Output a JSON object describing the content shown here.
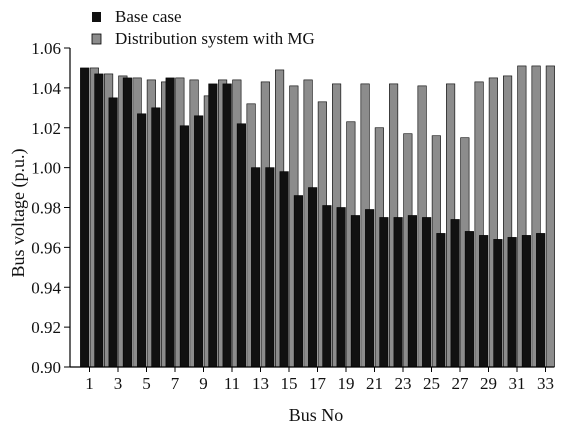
{
  "colors": {
    "base_case": "#111111",
    "mg": "#8c8c8c",
    "axis": "#000000",
    "background": "#ffffff"
  },
  "chart_data": {
    "type": "bar",
    "title": "",
    "xlabel": "Bus No",
    "ylabel": "Bus voltage (p.u.)",
    "ylim": [
      0.9,
      1.06
    ],
    "yticks": [
      "0.90",
      "0.92",
      "0.94",
      "0.96",
      "0.98",
      "1.00",
      "1.02",
      "1.04",
      "1.06"
    ],
    "grid": false,
    "legend_position": "top-left",
    "categories": [
      1,
      2,
      3,
      4,
      5,
      6,
      7,
      8,
      9,
      10,
      11,
      12,
      13,
      14,
      15,
      16,
      17,
      18,
      19,
      20,
      21,
      22,
      23,
      24,
      25,
      26,
      27,
      28,
      29,
      30,
      31,
      32,
      33
    ],
    "xtick_labels": [
      "1",
      "3",
      "5",
      "7",
      "9",
      "11",
      "13",
      "15",
      "17",
      "19",
      "21",
      "23",
      "25",
      "27",
      "29",
      "31",
      "33"
    ],
    "series": [
      {
        "name": "Base case",
        "values": [
          1.05,
          1.047,
          1.035,
          1.045,
          1.027,
          1.03,
          1.045,
          1.021,
          1.026,
          1.042,
          1.042,
          1.022,
          1.0,
          1.0,
          0.998,
          0.986,
          0.99,
          0.981,
          0.98,
          0.976,
          0.979,
          0.975,
          0.975,
          0.976,
          0.975,
          0.967,
          0.974,
          0.968,
          0.966,
          0.964,
          0.965,
          0.966,
          0.967
        ]
      },
      {
        "name": "Distribution system with MG",
        "values": [
          1.05,
          1.047,
          1.046,
          1.045,
          1.044,
          1.043,
          1.045,
          1.044,
          1.036,
          1.044,
          1.044,
          1.032,
          1.043,
          1.049,
          1.041,
          1.044,
          1.033,
          1.042,
          1.023,
          1.042,
          1.02,
          1.042,
          1.017,
          1.041,
          1.016,
          1.042,
          1.015,
          1.043,
          1.045,
          1.046,
          1.051,
          1.051,
          1.051
        ]
      }
    ]
  }
}
